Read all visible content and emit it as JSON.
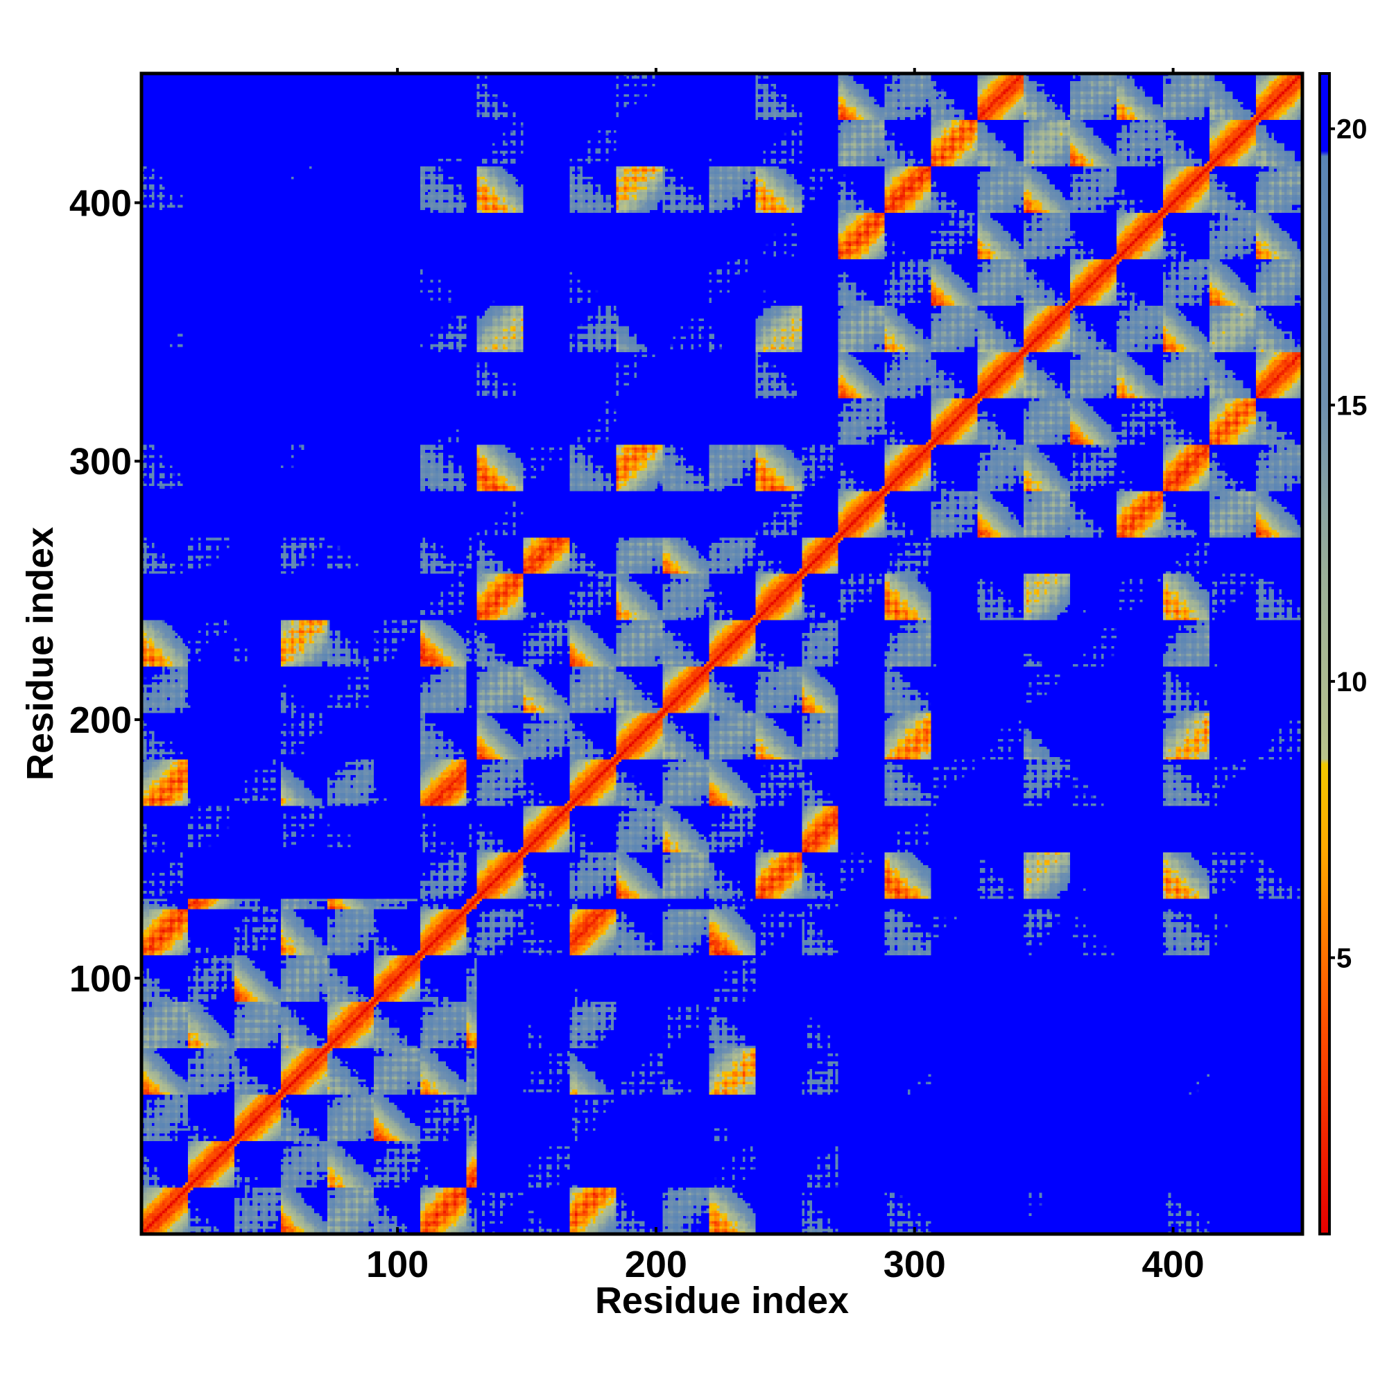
{
  "chart_data": {
    "type": "heatmap",
    "title": "",
    "xlabel": "Residue index",
    "ylabel": "Residue index",
    "xlim": [
      1,
      450
    ],
    "ylim": [
      1,
      450
    ],
    "x_ticks": [
      100,
      200,
      300,
      400
    ],
    "y_ticks": [
      100,
      200,
      300,
      400
    ],
    "x_tick_labels": [
      "100",
      "200",
      "300",
      "400"
    ],
    "y_tick_labels": [
      "100",
      "200",
      "300",
      "400"
    ],
    "grid": false,
    "legend": "none",
    "colorbar": {
      "position": "right",
      "ticks": [
        5,
        10,
        15,
        20
      ],
      "tick_labels": [
        "5",
        "10",
        "15",
        "20"
      ],
      "range": [
        0,
        21
      ],
      "stops": [
        {
          "value": 0,
          "color": "#e60000"
        },
        {
          "value": 4,
          "color": "#ff5500"
        },
        {
          "value": 7,
          "color": "#ffaa00"
        },
        {
          "value": 8.5,
          "color": "#f0c800"
        },
        {
          "value": 8.6,
          "color": "#b9c38c"
        },
        {
          "value": 12,
          "color": "#9aaf9a"
        },
        {
          "value": 15,
          "color": "#6f90b0"
        },
        {
          "value": 19.5,
          "color": "#5a85b5"
        },
        {
          "value": 19.6,
          "color": "#0000ff"
        },
        {
          "value": 21,
          "color": "#0000ff"
        }
      ]
    },
    "matrix_description_colors": {
      "near": "#e60000",
      "contact": "#ff8c00",
      "mid": "#c8c88c",
      "far": "#5a85b5",
      "max": "#0000ff"
    }
  }
}
